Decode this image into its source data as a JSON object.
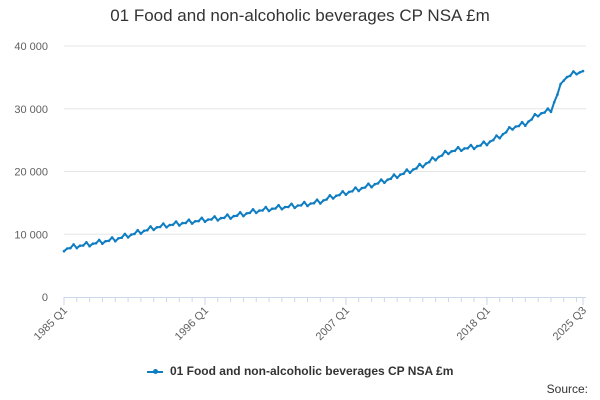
{
  "chart_data": {
    "type": "line",
    "title": "01 Food and non-alcoholic beverages CP NSA £m",
    "xlabel": "",
    "ylabel": "",
    "ylim": [
      0,
      40000
    ],
    "y_ticks": [
      "0",
      "10 000",
      "20 000",
      "30 000",
      "40 000"
    ],
    "x_tick_labels": [
      "1985 Q1",
      "1996 Q1",
      "2007 Q1",
      "2018 Q1",
      "2025 Q3"
    ],
    "grid": true,
    "legend_position": "bottom",
    "series": [
      {
        "name": "01 Food and non-alcoholic beverages CP NSA £m",
        "color": "#0f7dc2",
        "start": "1985 Q1",
        "end": "2025 Q3",
        "frequency": "quarterly",
        "annual_q1_values": [
          7300,
          7800,
          8100,
          8500,
          8900,
          9500,
          10100,
          10700,
          11100,
          11400,
          11700,
          12000,
          12200,
          12500,
          12900,
          13400,
          13700,
          14000,
          14200,
          14500,
          14900,
          15700,
          16300,
          16900,
          17500,
          18200,
          19000,
          19800,
          20700,
          21800,
          22800,
          23300,
          23600,
          24200,
          25300,
          26700,
          27300,
          28800,
          29500,
          34500,
          35500
        ],
        "seasonal_pattern": [
          0,
          300,
          250,
          700
        ],
        "final_value": 36000
      }
    ]
  },
  "legend": {
    "label": "01 Food and non-alcoholic beverages CP NSA £m"
  },
  "footer": {
    "source": "Source:"
  }
}
